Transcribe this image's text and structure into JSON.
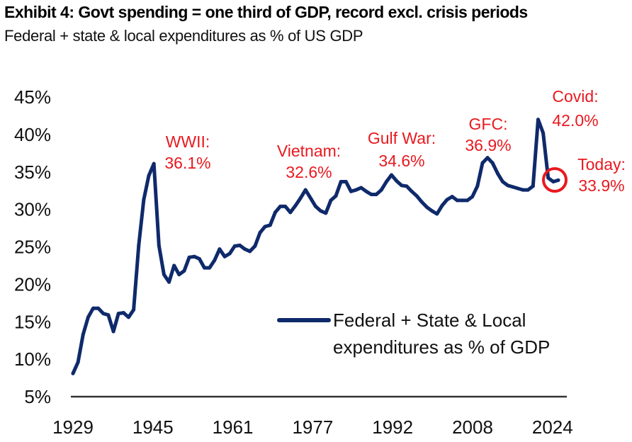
{
  "title": "Exhibit 4: Govt spending = one third of GDP, record excl. crisis periods",
  "subtitle": "Federal + state & local expenditures as % of US GDP",
  "colors": {
    "line": "#0f2a6b",
    "annotation": "#e8191f",
    "axis": "#333333"
  },
  "chart_data": {
    "type": "line",
    "title": "Exhibit 4: Govt spending = one third of GDP, record excl. crisis periods",
    "subtitle": "Federal + state & local expenditures as % of US GDP",
    "xlabel": "",
    "ylabel": "",
    "xlim": [
      1929,
      2025
    ],
    "ylim": [
      5,
      45
    ],
    "grid": false,
    "legend_position": "bottom-center",
    "x_ticks": [
      "1929",
      "1945",
      "1961",
      "1977",
      "1992",
      "2008",
      "2024"
    ],
    "y_ticks": [
      "5%",
      "10%",
      "15%",
      "20%",
      "25%",
      "30%",
      "35%",
      "40%",
      "45%"
    ],
    "series": [
      {
        "name": "Federal + State & Local expenditures as % of GDP",
        "legend_lines": [
          "Federal + State & Local",
          "expenditures as % of GDP"
        ],
        "x": [
          1929,
          1930,
          1931,
          1932,
          1933,
          1934,
          1935,
          1936,
          1937,
          1938,
          1939,
          1940,
          1941,
          1942,
          1943,
          1944,
          1945,
          1946,
          1947,
          1948,
          1949,
          1950,
          1951,
          1952,
          1953,
          1954,
          1955,
          1956,
          1957,
          1958,
          1959,
          1960,
          1961,
          1962,
          1963,
          1964,
          1965,
          1966,
          1967,
          1968,
          1969,
          1970,
          1971,
          1972,
          1973,
          1974,
          1975,
          1976,
          1977,
          1978,
          1979,
          1980,
          1981,
          1982,
          1983,
          1984,
          1985,
          1986,
          1987,
          1988,
          1989,
          1990,
          1991,
          1992,
          1993,
          1994,
          1995,
          1996,
          1997,
          1998,
          1999,
          2000,
          2001,
          2002,
          2003,
          2004,
          2005,
          2006,
          2007,
          2008,
          2009,
          2010,
          2011,
          2012,
          2013,
          2014,
          2015,
          2016,
          2017,
          2018,
          2019,
          2020,
          2021,
          2022,
          2023,
          2024,
          2025
        ],
        "values": [
          8.1,
          9.6,
          13.3,
          15.6,
          16.8,
          16.8,
          16.1,
          15.9,
          13.7,
          16.1,
          16.2,
          15.6,
          16.6,
          25.2,
          31.3,
          34.5,
          36.1,
          25.2,
          21.3,
          20.3,
          22.5,
          21.3,
          21.8,
          23.6,
          23.7,
          23.4,
          22.2,
          22.2,
          23.2,
          24.7,
          23.7,
          24.1,
          25.1,
          25.2,
          24.7,
          24.4,
          25.1,
          26.9,
          27.7,
          27.9,
          29.6,
          30.4,
          30.4,
          29.6,
          30.5,
          31.5,
          32.6,
          31.5,
          30.4,
          29.8,
          29.5,
          31.2,
          31.8,
          33.7,
          33.7,
          32.4,
          32.6,
          32.9,
          32.4,
          32.0,
          32.0,
          32.6,
          33.7,
          34.6,
          33.8,
          33.2,
          33.1,
          32.4,
          31.8,
          31.0,
          30.3,
          29.8,
          29.4,
          30.5,
          31.3,
          31.7,
          31.2,
          31.2,
          31.2,
          31.7,
          33.1,
          36.2,
          36.9,
          36.2,
          34.8,
          33.7,
          33.2,
          33.0,
          32.8,
          32.6,
          32.6,
          33.1,
          42.0,
          40.2,
          34.2,
          33.7,
          33.9
        ]
      }
    ],
    "annotations": [
      {
        "label": "WWII:",
        "value_text": "36.1%"
      },
      {
        "label": "Vietnam:",
        "value_text": "32.6%"
      },
      {
        "label": "Gulf War:",
        "value_text": "34.6%"
      },
      {
        "label": "GFC:",
        "value_text": "36.9%"
      },
      {
        "label": "Covid:",
        "value_text": "42.0%"
      },
      {
        "label": "Today:",
        "value_text": "33.9%"
      }
    ]
  }
}
